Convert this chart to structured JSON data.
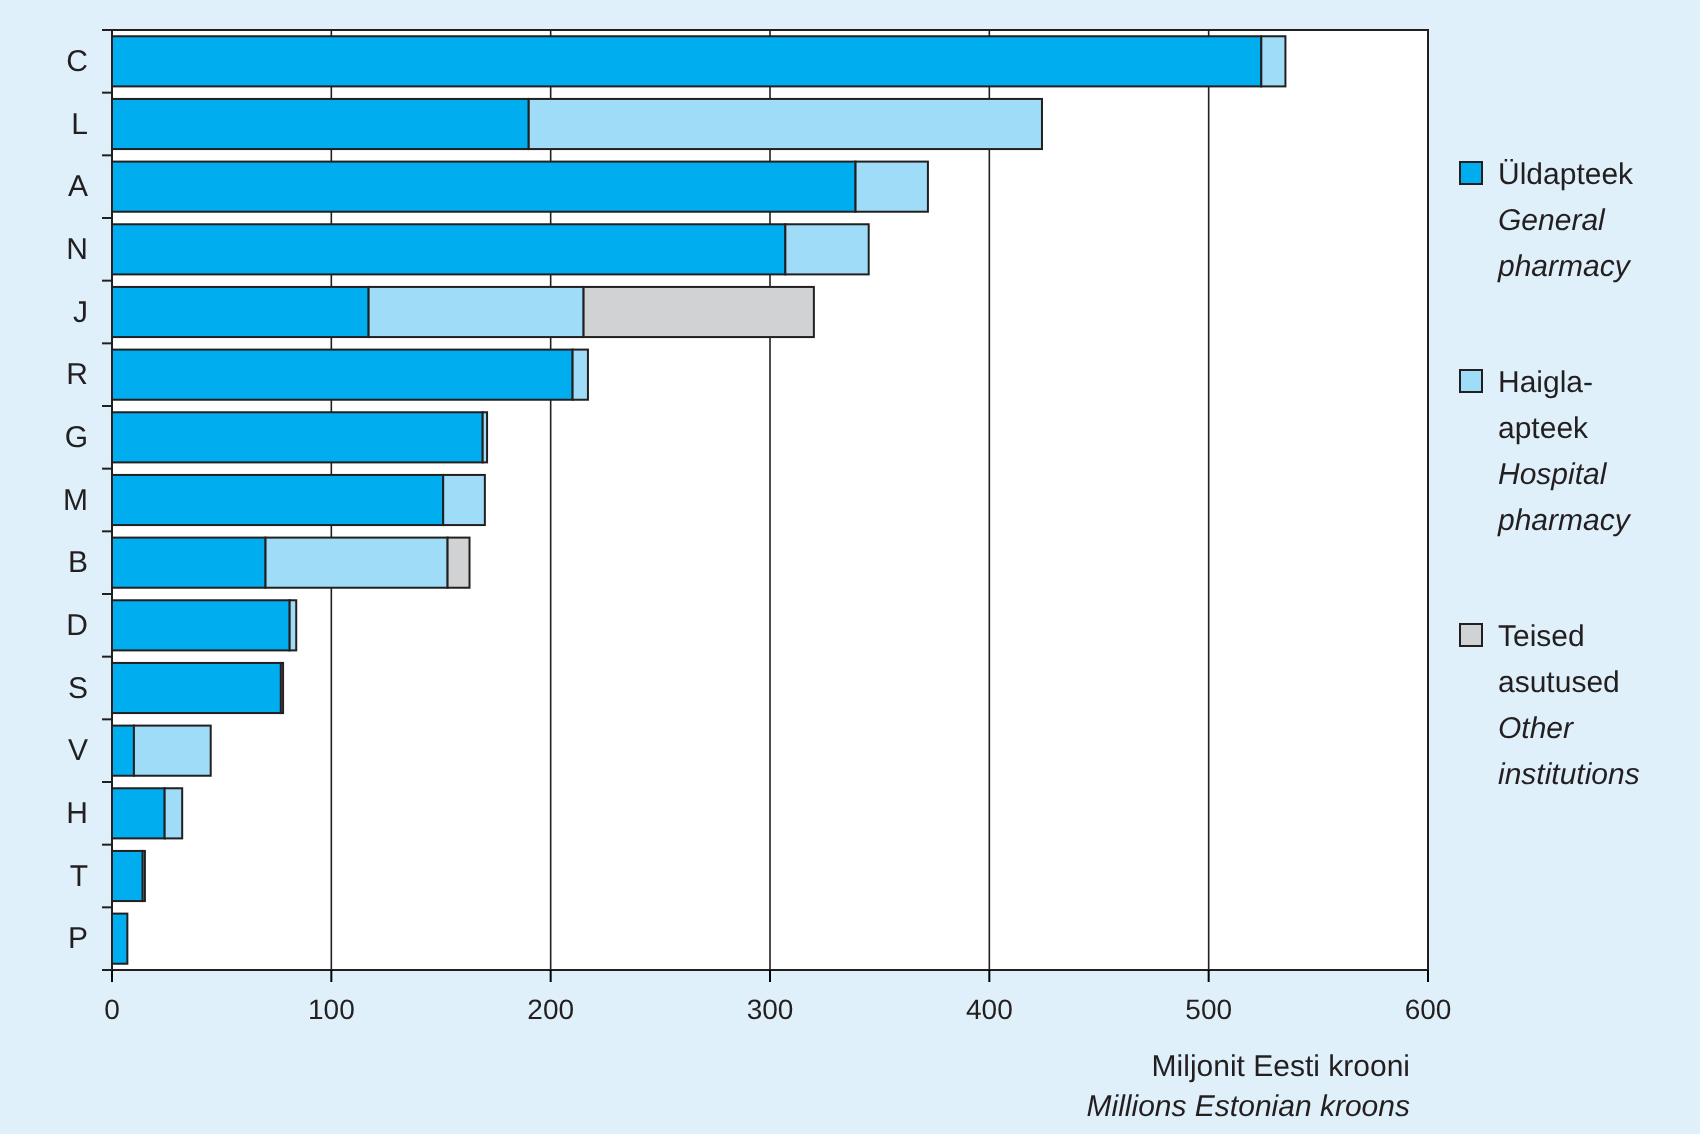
{
  "chart_data": {
    "type": "bar",
    "orientation": "horizontal",
    "stacked": true,
    "categories": [
      "C",
      "L",
      "A",
      "N",
      "J",
      "R",
      "G",
      "M",
      "B",
      "D",
      "S",
      "V",
      "H",
      "T",
      "P"
    ],
    "series": [
      {
        "name": "Üldapteek\nGeneral\npharmacy",
        "color": "#00aeef",
        "values": [
          524,
          190,
          339,
          307,
          117,
          210,
          169,
          151,
          70,
          81,
          77,
          10,
          24,
          14,
          7
        ]
      },
      {
        "name": "Haigla-\napteek\nHospital\npharmacy",
        "color": "#9edcf7",
        "values": [
          11,
          234,
          33,
          38,
          98,
          7,
          2,
          19,
          83,
          3,
          0,
          35,
          8,
          1,
          0
        ]
      },
      {
        "name": "Teised\nasutused\nOther\ninstitutions",
        "color": "#d1d2d4",
        "values": [
          0,
          0,
          0,
          0,
          105,
          0,
          0,
          0,
          10,
          0,
          1,
          0,
          0,
          0,
          0
        ]
      }
    ],
    "xlim": [
      0,
      600
    ],
    "xticks": [
      0,
      100,
      200,
      300,
      400,
      500,
      600
    ],
    "grid": "x",
    "legend": "right",
    "xlabel": "Miljonit Eesti krooni\nMillions Estonian kroons"
  }
}
